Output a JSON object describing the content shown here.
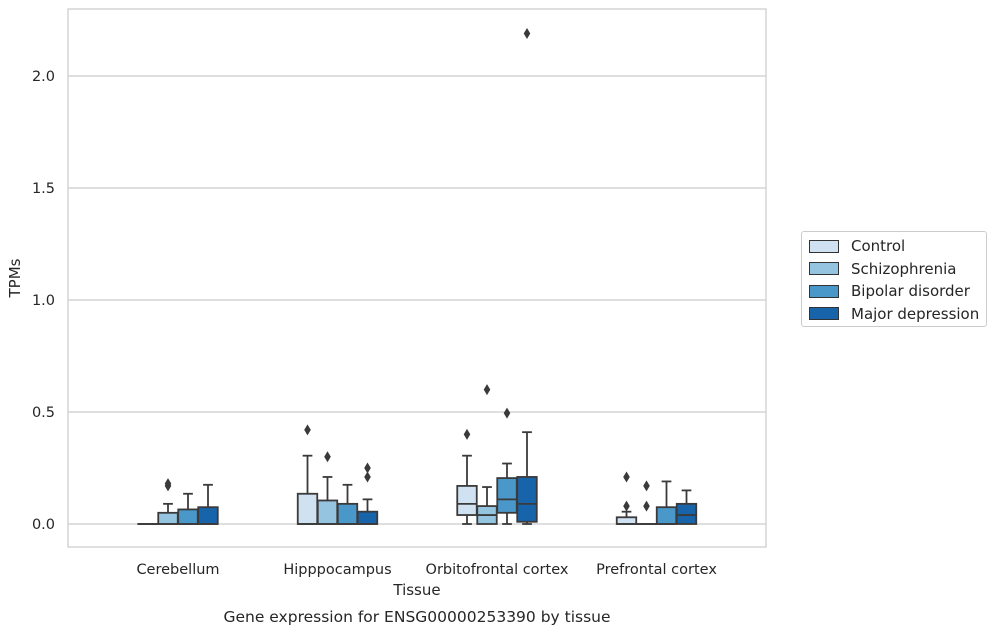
{
  "chart_data": {
    "type": "box",
    "title": "",
    "caption": "Gene expression for ENSG00000253390 by tissue",
    "xlabel": "Tissue",
    "ylabel": "TPMs",
    "ylim": [
      -0.1,
      2.3
    ],
    "yticks": [
      0.0,
      0.5,
      1.0,
      1.5,
      2.0
    ],
    "ytick_labels": [
      "0.0",
      "0.5",
      "1.0",
      "1.5",
      "2.0"
    ],
    "grid": "horizontal",
    "legend_position": "right",
    "categories": [
      "Cerebellum",
      "Hipppocampus",
      "Orbitofrontal cortex",
      "Prefrontal cortex"
    ],
    "series": [
      {
        "name": "Control",
        "color": "#d0e1f2",
        "boxes": [
          {
            "min": 0.0,
            "q1": 0.0,
            "median": 0.0,
            "q3": 0.0,
            "max": 0.0,
            "outliers": []
          },
          {
            "min": 0.0,
            "q1": 0.0,
            "median": 0.0,
            "q3": 0.135,
            "max": 0.305,
            "outliers": [
              0.42
            ]
          },
          {
            "min": 0.0,
            "q1": 0.04,
            "median": 0.09,
            "q3": 0.17,
            "max": 0.305,
            "outliers": [
              0.4
            ]
          },
          {
            "min": 0.0,
            "q1": 0.0,
            "median": 0.0,
            "q3": 0.03,
            "max": 0.055,
            "outliers": [
              0.08,
              0.21
            ]
          }
        ]
      },
      {
        "name": "Schizophrenia",
        "color": "#94c4df",
        "boxes": [
          {
            "min": 0.0,
            "q1": 0.0,
            "median": 0.0,
            "q3": 0.05,
            "max": 0.09,
            "outliers": [
              0.17,
              0.18
            ]
          },
          {
            "min": 0.0,
            "q1": 0.0,
            "median": 0.0,
            "q3": 0.105,
            "max": 0.21,
            "outliers": [
              0.3
            ]
          },
          {
            "min": 0.0,
            "q1": 0.0,
            "median": 0.04,
            "q3": 0.08,
            "max": 0.165,
            "outliers": [
              0.6
            ]
          },
          {
            "min": 0.0,
            "q1": 0.0,
            "median": 0.0,
            "q3": 0.0,
            "max": 0.0,
            "outliers": [
              0.08,
              0.17
            ]
          }
        ]
      },
      {
        "name": "Bipolar disorder",
        "color": "#4a98c9",
        "boxes": [
          {
            "min": 0.0,
            "q1": 0.0,
            "median": 0.0,
            "q3": 0.065,
            "max": 0.135,
            "outliers": []
          },
          {
            "min": 0.0,
            "q1": 0.0,
            "median": 0.0,
            "q3": 0.09,
            "max": 0.175,
            "outliers": []
          },
          {
            "min": 0.0,
            "q1": 0.05,
            "median": 0.11,
            "q3": 0.205,
            "max": 0.27,
            "outliers": [
              0.495
            ]
          },
          {
            "min": 0.0,
            "q1": 0.0,
            "median": 0.0,
            "q3": 0.075,
            "max": 0.19,
            "outliers": []
          }
        ]
      },
      {
        "name": "Major depression",
        "color": "#1764ab",
        "boxes": [
          {
            "min": 0.0,
            "q1": 0.0,
            "median": 0.0,
            "q3": 0.075,
            "max": 0.175,
            "outliers": []
          },
          {
            "min": 0.0,
            "q1": 0.0,
            "median": 0.0,
            "q3": 0.055,
            "max": 0.11,
            "outliers": [
              0.21,
              0.25
            ]
          },
          {
            "min": 0.0,
            "q1": 0.01,
            "median": 0.09,
            "q3": 0.21,
            "max": 0.41,
            "outliers": [
              2.19
            ]
          },
          {
            "min": 0.0,
            "q1": 0.0,
            "median": 0.04,
            "q3": 0.09,
            "max": 0.15,
            "outliers": []
          }
        ]
      }
    ]
  }
}
